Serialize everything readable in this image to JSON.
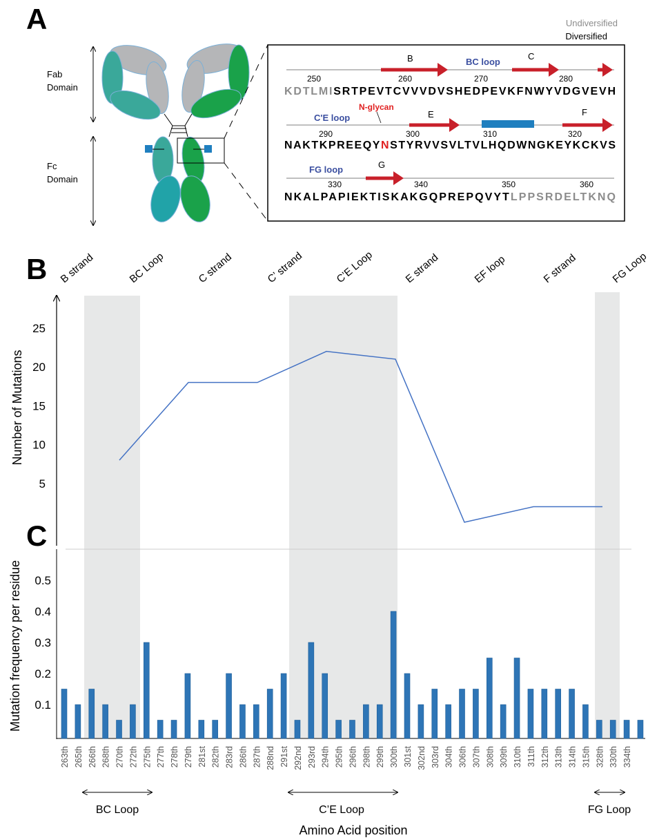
{
  "panel_labels": [
    "A",
    "B",
    "C"
  ],
  "panel_a": {
    "legend": [
      {
        "text": "Undiversified",
        "color": "#8c8c8c"
      },
      {
        "text": "Diversified",
        "color": "#000000"
      }
    ],
    "fab_label": [
      "Fab",
      "Domain"
    ],
    "fc_label": [
      "Fc",
      "Domain"
    ],
    "strands": [
      "B",
      "C",
      "E",
      "F",
      "G"
    ],
    "loops": [
      "BC loop",
      "C'E loop",
      "FG loop"
    ],
    "glycan": "N-glycan",
    "positions": [
      250,
      260,
      270,
      280,
      290,
      300,
      310,
      320,
      330,
      340,
      350,
      360
    ],
    "rows": [
      [
        {
          "text": "KDTLMI",
          "color": "#8c8c8c"
        },
        {
          "text": "SRTPEVTCVVVDVSHEDPEVKFNWYVDGVEVH",
          "color": "#000000"
        }
      ],
      [
        {
          "text": "NAKTKPREEQY",
          "color": "#000000"
        },
        {
          "text": "N",
          "color": "#e02020"
        },
        {
          "text": "STYRVVSVLTVLHQDWNGKEYKCKVS",
          "color": "#000000"
        }
      ],
      [
        {
          "text": "NKALPAPIEKTISKAKGQPREPQVYT",
          "color": "#000000"
        },
        {
          "text": "LPPSRDELTKNQ",
          "color": "#8c8c8c"
        }
      ]
    ]
  },
  "chart_data": [
    {
      "type": "line",
      "y_label": "Number of Mutations",
      "categories": [
        "B strand",
        "BC Loop",
        "C strand",
        "C’ strand",
        "C’E Loop",
        "E strand",
        "EF loop",
        "F strand",
        "FG Loop"
      ],
      "values": [
        null,
        8,
        18,
        18,
        22,
        21,
        0,
        2,
        2
      ],
      "color": "#4472c4",
      "ylim": [
        0,
        29
      ],
      "yticks": [
        5,
        10,
        15,
        20,
        25
      ]
    },
    {
      "type": "bar",
      "y_label": "Mutation frequency per residue",
      "x_label": "Amino Acid position",
      "categories": [
        "263th",
        "265th",
        "266th",
        "268th",
        "270th",
        "272th",
        "275th",
        "277th",
        "278th",
        "279th",
        "281st",
        "282th",
        "283rd",
        "286th",
        "287th",
        "288nd",
        "291st",
        "292nd",
        "293rd",
        "294th",
        "295th",
        "296th",
        "298th",
        "299th",
        "300th",
        "301st",
        "302nd",
        "303rd",
        "304th",
        "306th",
        "307th",
        "308th",
        "309th",
        "310th",
        "311th",
        "312th",
        "313th",
        "314th",
        "315th",
        "328th",
        "330th",
        "334th",
        null
      ],
      "values": [
        0.15,
        0.1,
        0.15,
        0.1,
        0.05,
        0.1,
        0.3,
        0.05,
        0.05,
        0.2,
        0.05,
        0.05,
        0.2,
        0.1,
        0.1,
        0.15,
        0.2,
        0.05,
        0.3,
        0.2,
        0.05,
        0.05,
        0.1,
        0.1,
        0.4,
        0.2,
        0.1,
        0.15,
        0.1,
        0.15,
        0.15,
        0.25,
        0.1,
        0.25,
        0.15,
        0.15,
        0.15,
        0.15,
        0.1,
        0.05,
        0.05,
        0.05,
        0.05
      ],
      "color": "#2e75b6",
      "ylim": [
        0,
        0.6
      ],
      "yticks": [
        0.1,
        0.2,
        0.3,
        0.4,
        0.5
      ],
      "annotations": [
        "BC Loop",
        "C’E Loop",
        "FG Loop"
      ]
    }
  ]
}
